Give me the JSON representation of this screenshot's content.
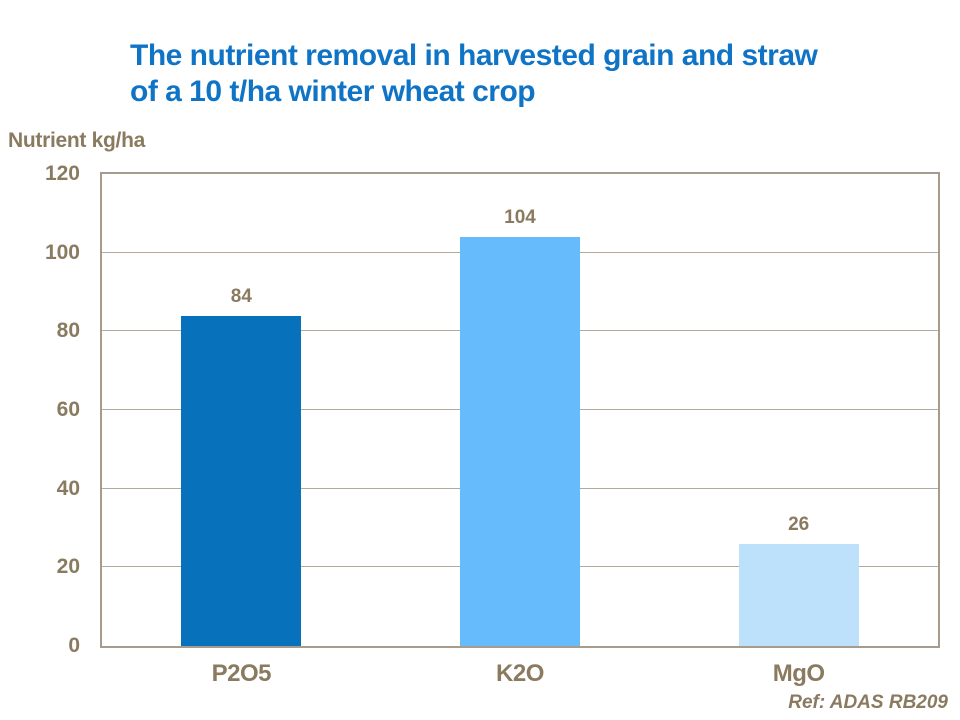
{
  "title": {
    "line1": "The nutrient removal in harvested grain and straw",
    "line2": "of a 10 t/ha winter wheat crop"
  },
  "colors": {
    "title_blue": "#1074C6",
    "text_brown": "#8A7A60",
    "plot_border": "#A69B8D",
    "gridline": "#B3A99C",
    "background": "#FFFFFF"
  },
  "chart_data": {
    "type": "bar",
    "title": "The nutrient removal in harvested grain and straw of a 10 t/ha winter wheat crop",
    "categories": [
      "P2O5",
      "K2O",
      "MgO"
    ],
    "values": [
      84,
      104,
      26
    ],
    "data_labels": [
      "84",
      "104",
      "26"
    ],
    "bar_colors": [
      "#0871BC",
      "#66BBFC",
      "#BEE1FB"
    ],
    "ylabel": "Nutrient kg/ha",
    "xlabel": "",
    "ylim": [
      0,
      120
    ],
    "ytick_step": 20,
    "yticks": [
      "0",
      "20",
      "40",
      "60",
      "80",
      "100",
      "120"
    ],
    "grid": true,
    "legend": false,
    "source_note": "Ref: ADAS RB209"
  }
}
